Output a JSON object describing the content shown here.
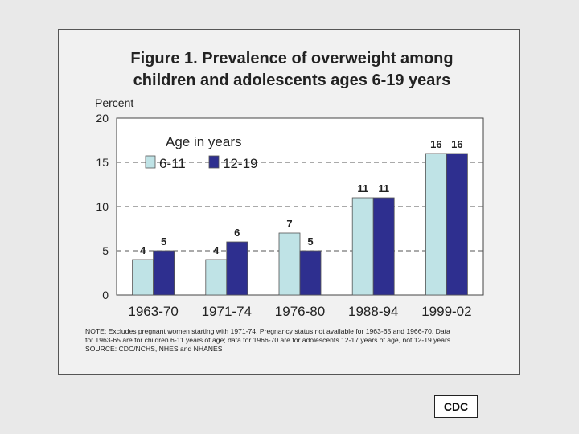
{
  "colors": {
    "series_6_11": "#bfe3e6",
    "series_12_19": "#2e2f8f",
    "background": "#e9e9e9",
    "panel": "#f1f1f1",
    "plot_area": "#ffffff"
  },
  "chart_data": {
    "type": "bar",
    "title_lines": [
      "Figure 1. Prevalence of overweight among",
      "children and adolescents ages 6-19 years"
    ],
    "ylabel": "Percent",
    "xlabel": "",
    "ylim": [
      0,
      20
    ],
    "yticks": [
      0,
      5,
      10,
      15,
      20
    ],
    "grid": true,
    "legend_title": "Age in years",
    "legend_position": "top-left",
    "categories": [
      "1963-70",
      "1971-74",
      "1976-80",
      "1988-94",
      "1999-02"
    ],
    "series": [
      {
        "name": "6-11",
        "values": [
          4,
          4,
          7,
          11,
          16
        ]
      },
      {
        "name": "12-19",
        "values": [
          5,
          6,
          5,
          11,
          16
        ]
      }
    ]
  },
  "note": {
    "lines": [
      "NOTE: Excludes pregnant women starting with 1971-74. Pregnancy status not available for 1963-65 and 1966-70. Data",
      "for 1963-65 are for children 6-11 years of age; data for 1966-70 are for adolescents 12-17 years of age, not 12-19 years.",
      "SOURCE: CDC/NCHS, NHES and NHANES"
    ]
  },
  "badge": {
    "label": "CDC"
  }
}
